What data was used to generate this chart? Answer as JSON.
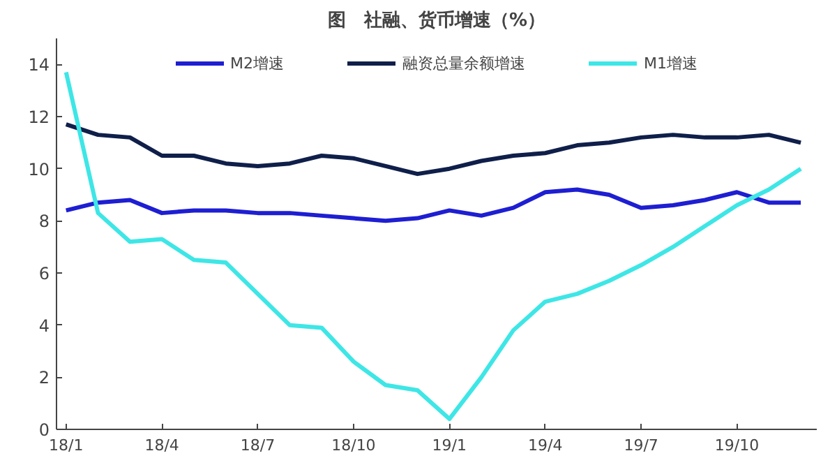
{
  "chart_data": {
    "type": "line",
    "title": "图　社融、货币增速（%）",
    "categories": [
      "18/1",
      null,
      null,
      "18/4",
      null,
      null,
      "18/7",
      null,
      null,
      "18/10",
      null,
      null,
      "19/1",
      null,
      null,
      "19/4",
      null,
      null,
      "19/7",
      null,
      null,
      "19/10",
      null,
      null
    ],
    "series": [
      {
        "name": "M2增速",
        "color": "#1e1ed2",
        "values": [
          8.4,
          8.7,
          8.8,
          8.3,
          8.4,
          8.4,
          8.3,
          8.3,
          8.2,
          8.1,
          8.0,
          8.1,
          8.4,
          8.2,
          8.5,
          9.1,
          9.2,
          9.0,
          8.5,
          8.6,
          8.8,
          9.1,
          8.7,
          8.7
        ]
      },
      {
        "name": "融资总量余额增速",
        "color": "#0f1f4a",
        "values": [
          11.7,
          11.3,
          11.2,
          10.5,
          10.5,
          10.2,
          10.1,
          10.2,
          10.5,
          10.4,
          10.1,
          9.8,
          10.0,
          10.3,
          10.5,
          10.6,
          10.9,
          11.0,
          11.2,
          11.3,
          11.2,
          11.2,
          11.3,
          11.0
        ]
      },
      {
        "name": "M1增速",
        "color": "#3ee6e6",
        "values": [
          13.7,
          8.3,
          7.2,
          7.3,
          6.5,
          6.4,
          5.2,
          4.0,
          3.9,
          2.6,
          1.7,
          1.5,
          0.4,
          2.0,
          3.8,
          4.9,
          5.2,
          5.7,
          6.3,
          7.0,
          7.8,
          8.6,
          9.2,
          10.0
        ]
      }
    ],
    "ylim": [
      0,
      15
    ],
    "yticks": [
      0,
      2,
      4,
      6,
      8,
      10,
      12,
      14
    ],
    "grid": false,
    "legend": "top",
    "line_style": "solid",
    "marker": "none"
  }
}
